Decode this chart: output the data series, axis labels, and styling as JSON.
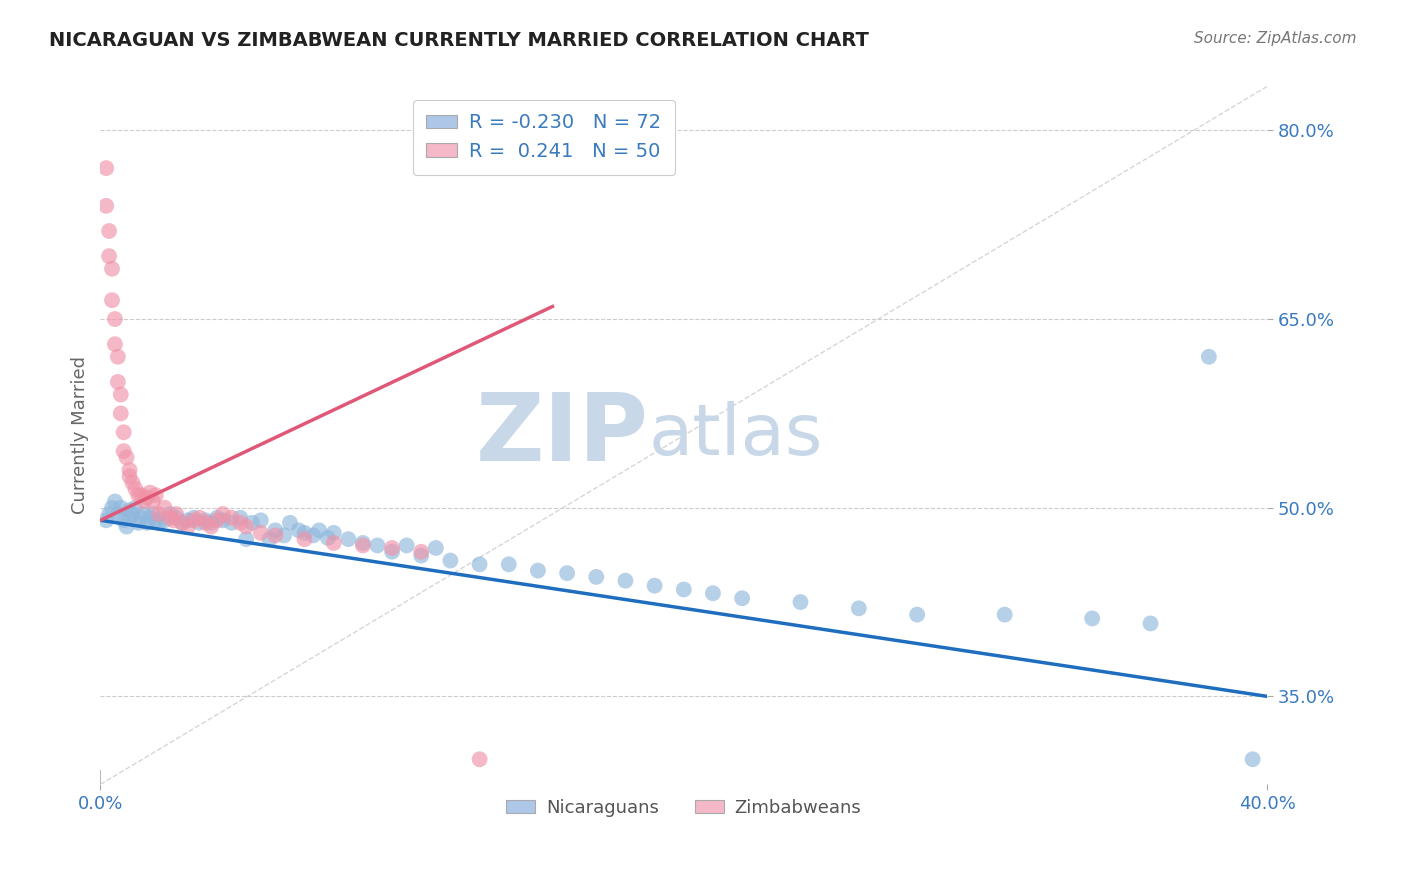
{
  "title": "NICARAGUAN VS ZIMBABWEAN CURRENTLY MARRIED CORRELATION CHART",
  "source": "Source: ZipAtlas.com",
  "ylabel": "Currently Married",
  "xlim": [
    0.0,
    0.4
  ],
  "ylim": [
    0.28,
    0.835
  ],
  "yticks": [
    0.35,
    0.5,
    0.65,
    0.8
  ],
  "ytick_labels": [
    "35.0%",
    "50.0%",
    "65.0%",
    "80.0%"
  ],
  "blue_R": -0.23,
  "blue_N": 72,
  "pink_R": 0.241,
  "pink_N": 50,
  "blue_color": "#aec6e8",
  "pink_color": "#f4b8c8",
  "blue_line_color": "#1f6dbf",
  "pink_line_color": "#e05878",
  "blue_marker_color": "#90b8dc",
  "pink_marker_color": "#f093a8",
  "grid_color": "#cccccc",
  "background_color": "#ffffff",
  "watermark_zip_color": "#c8d8e8",
  "watermark_atlas_color": "#c8d8e8",
  "blue_trend_x": [
    0.0,
    0.4
  ],
  "blue_trend_y": [
    0.49,
    0.35
  ],
  "pink_trend_x": [
    0.0,
    0.155
  ],
  "pink_trend_y": [
    0.49,
    0.66
  ],
  "diag_line_x": [
    0.0,
    0.4
  ],
  "diag_line_y": [
    0.28,
    0.835
  ],
  "blue_x": [
    0.002,
    0.003,
    0.004,
    0.005,
    0.006,
    0.007,
    0.008,
    0.009,
    0.01,
    0.01,
    0.011,
    0.012,
    0.013,
    0.014,
    0.015,
    0.016,
    0.017,
    0.018,
    0.019,
    0.02,
    0.022,
    0.024,
    0.026,
    0.028,
    0.03,
    0.032,
    0.034,
    0.036,
    0.038,
    0.04,
    0.042,
    0.045,
    0.048,
    0.05,
    0.052,
    0.055,
    0.058,
    0.06,
    0.063,
    0.065,
    0.068,
    0.07,
    0.073,
    0.075,
    0.078,
    0.08,
    0.085,
    0.09,
    0.095,
    0.1,
    0.105,
    0.11,
    0.115,
    0.12,
    0.13,
    0.14,
    0.15,
    0.16,
    0.17,
    0.18,
    0.19,
    0.2,
    0.21,
    0.22,
    0.24,
    0.26,
    0.28,
    0.31,
    0.34,
    0.36,
    0.38,
    0.395
  ],
  "blue_y": [
    0.49,
    0.495,
    0.5,
    0.505,
    0.495,
    0.5,
    0.49,
    0.485,
    0.492,
    0.498,
    0.495,
    0.5,
    0.488,
    0.492,
    0.495,
    0.488,
    0.492,
    0.495,
    0.49,
    0.488,
    0.49,
    0.495,
    0.492,
    0.488,
    0.49,
    0.492,
    0.488,
    0.49,
    0.488,
    0.492,
    0.49,
    0.488,
    0.492,
    0.475,
    0.488,
    0.49,
    0.475,
    0.482,
    0.478,
    0.488,
    0.482,
    0.48,
    0.478,
    0.482,
    0.476,
    0.48,
    0.475,
    0.472,
    0.47,
    0.465,
    0.47,
    0.462,
    0.468,
    0.458,
    0.455,
    0.455,
    0.45,
    0.448,
    0.445,
    0.442,
    0.438,
    0.435,
    0.432,
    0.428,
    0.425,
    0.42,
    0.415,
    0.415,
    0.412,
    0.408,
    0.62,
    0.3
  ],
  "pink_x": [
    0.002,
    0.002,
    0.003,
    0.003,
    0.004,
    0.004,
    0.005,
    0.005,
    0.006,
    0.006,
    0.007,
    0.007,
    0.008,
    0.008,
    0.009,
    0.01,
    0.01,
    0.011,
    0.012,
    0.013,
    0.014,
    0.015,
    0.016,
    0.017,
    0.018,
    0.019,
    0.02,
    0.022,
    0.024,
    0.026,
    0.028,
    0.03,
    0.032,
    0.034,
    0.036,
    0.038,
    0.04,
    0.042,
    0.045,
    0.048,
    0.05,
    0.055,
    0.06,
    0.07,
    0.08,
    0.09,
    0.1,
    0.11,
    0.13,
    0.025
  ],
  "pink_y": [
    0.77,
    0.74,
    0.72,
    0.7,
    0.69,
    0.665,
    0.65,
    0.63,
    0.62,
    0.6,
    0.59,
    0.575,
    0.56,
    0.545,
    0.54,
    0.53,
    0.525,
    0.52,
    0.515,
    0.51,
    0.51,
    0.505,
    0.508,
    0.512,
    0.505,
    0.51,
    0.495,
    0.5,
    0.492,
    0.495,
    0.488,
    0.485,
    0.49,
    0.492,
    0.488,
    0.485,
    0.49,
    0.495,
    0.492,
    0.488,
    0.485,
    0.48,
    0.478,
    0.475,
    0.472,
    0.47,
    0.468,
    0.465,
    0.3,
    0.49
  ]
}
